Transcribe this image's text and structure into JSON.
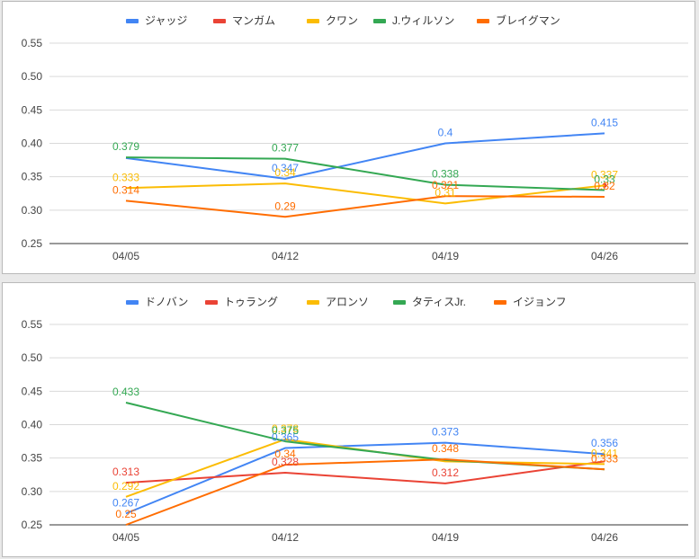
{
  "chart_data": [
    {
      "type": "line",
      "categories": [
        "04/05",
        "04/12",
        "04/19",
        "04/26"
      ],
      "ylim": [
        0.25,
        0.55
      ],
      "yticks": [
        "0.25",
        "0.30",
        "0.35",
        "0.40",
        "0.45",
        "0.50",
        "0.55"
      ],
      "grid": true,
      "legend_position": "top",
      "series": [
        {
          "name": "ジャッジ",
          "color": "#4285f4",
          "values": [
            0.378,
            0.347,
            0.4,
            0.415
          ],
          "labels": [
            "",
            "0.347",
            "0.4",
            "0.415"
          ]
        },
        {
          "name": "マンガム",
          "color": "#ea4335",
          "values": [
            null,
            null,
            null,
            0.337
          ],
          "labels": [
            "",
            "",
            "",
            ""
          ]
        },
        {
          "name": "クワン",
          "color": "#fbbc04",
          "values": [
            0.333,
            0.34,
            0.31,
            0.337
          ],
          "labels": [
            "0.333",
            "0.34",
            "0.31",
            "0.337"
          ]
        },
        {
          "name": "J.ウィルソン",
          "color": "#34a853",
          "values": [
            0.379,
            0.377,
            0.338,
            0.33
          ],
          "labels": [
            "0.379",
            "0.377",
            "0.338",
            "0.33"
          ]
        },
        {
          "name": "ブレイグマン",
          "color": "#ff6d01",
          "values": [
            0.314,
            0.29,
            0.321,
            0.32
          ],
          "labels": [
            "0.314",
            "0.29",
            "0.321",
            "0.32"
          ]
        }
      ]
    },
    {
      "type": "line",
      "categories": [
        "04/05",
        "04/12",
        "04/19",
        "04/26"
      ],
      "ylim": [
        0.25,
        0.55
      ],
      "yticks": [
        "0.25",
        "0.30",
        "0.35",
        "0.40",
        "0.45",
        "0.50",
        "0.55"
      ],
      "grid": true,
      "legend_position": "top",
      "series": [
        {
          "name": "ドノバン",
          "color": "#4285f4",
          "values": [
            0.267,
            0.365,
            0.373,
            0.356
          ],
          "labels": [
            "0.267",
            "0.365",
            "0.373",
            "0.356"
          ]
        },
        {
          "name": "トゥラング",
          "color": "#ea4335",
          "values": [
            0.313,
            0.328,
            0.312,
            0.345
          ],
          "labels": [
            "0.313",
            "0.328",
            "0.312",
            ""
          ]
        },
        {
          "name": "アロンソ",
          "color": "#fbbc04",
          "values": [
            0.292,
            0.378,
            0.345,
            0.341
          ],
          "labels": [
            "0.292",
            "0.378",
            "",
            "0.341"
          ]
        },
        {
          "name": "タティスJr.",
          "color": "#34a853",
          "values": [
            0.433,
            0.375,
            0.347,
            0.333
          ],
          "labels": [
            "0.433",
            "0.375",
            "",
            ""
          ]
        },
        {
          "name": "イジョンフ",
          "color": "#ff6d01",
          "values": [
            0.25,
            0.34,
            0.348,
            0.333
          ],
          "labels": [
            "0.25",
            "0.34",
            "0.348",
            "0.333"
          ]
        }
      ]
    }
  ]
}
